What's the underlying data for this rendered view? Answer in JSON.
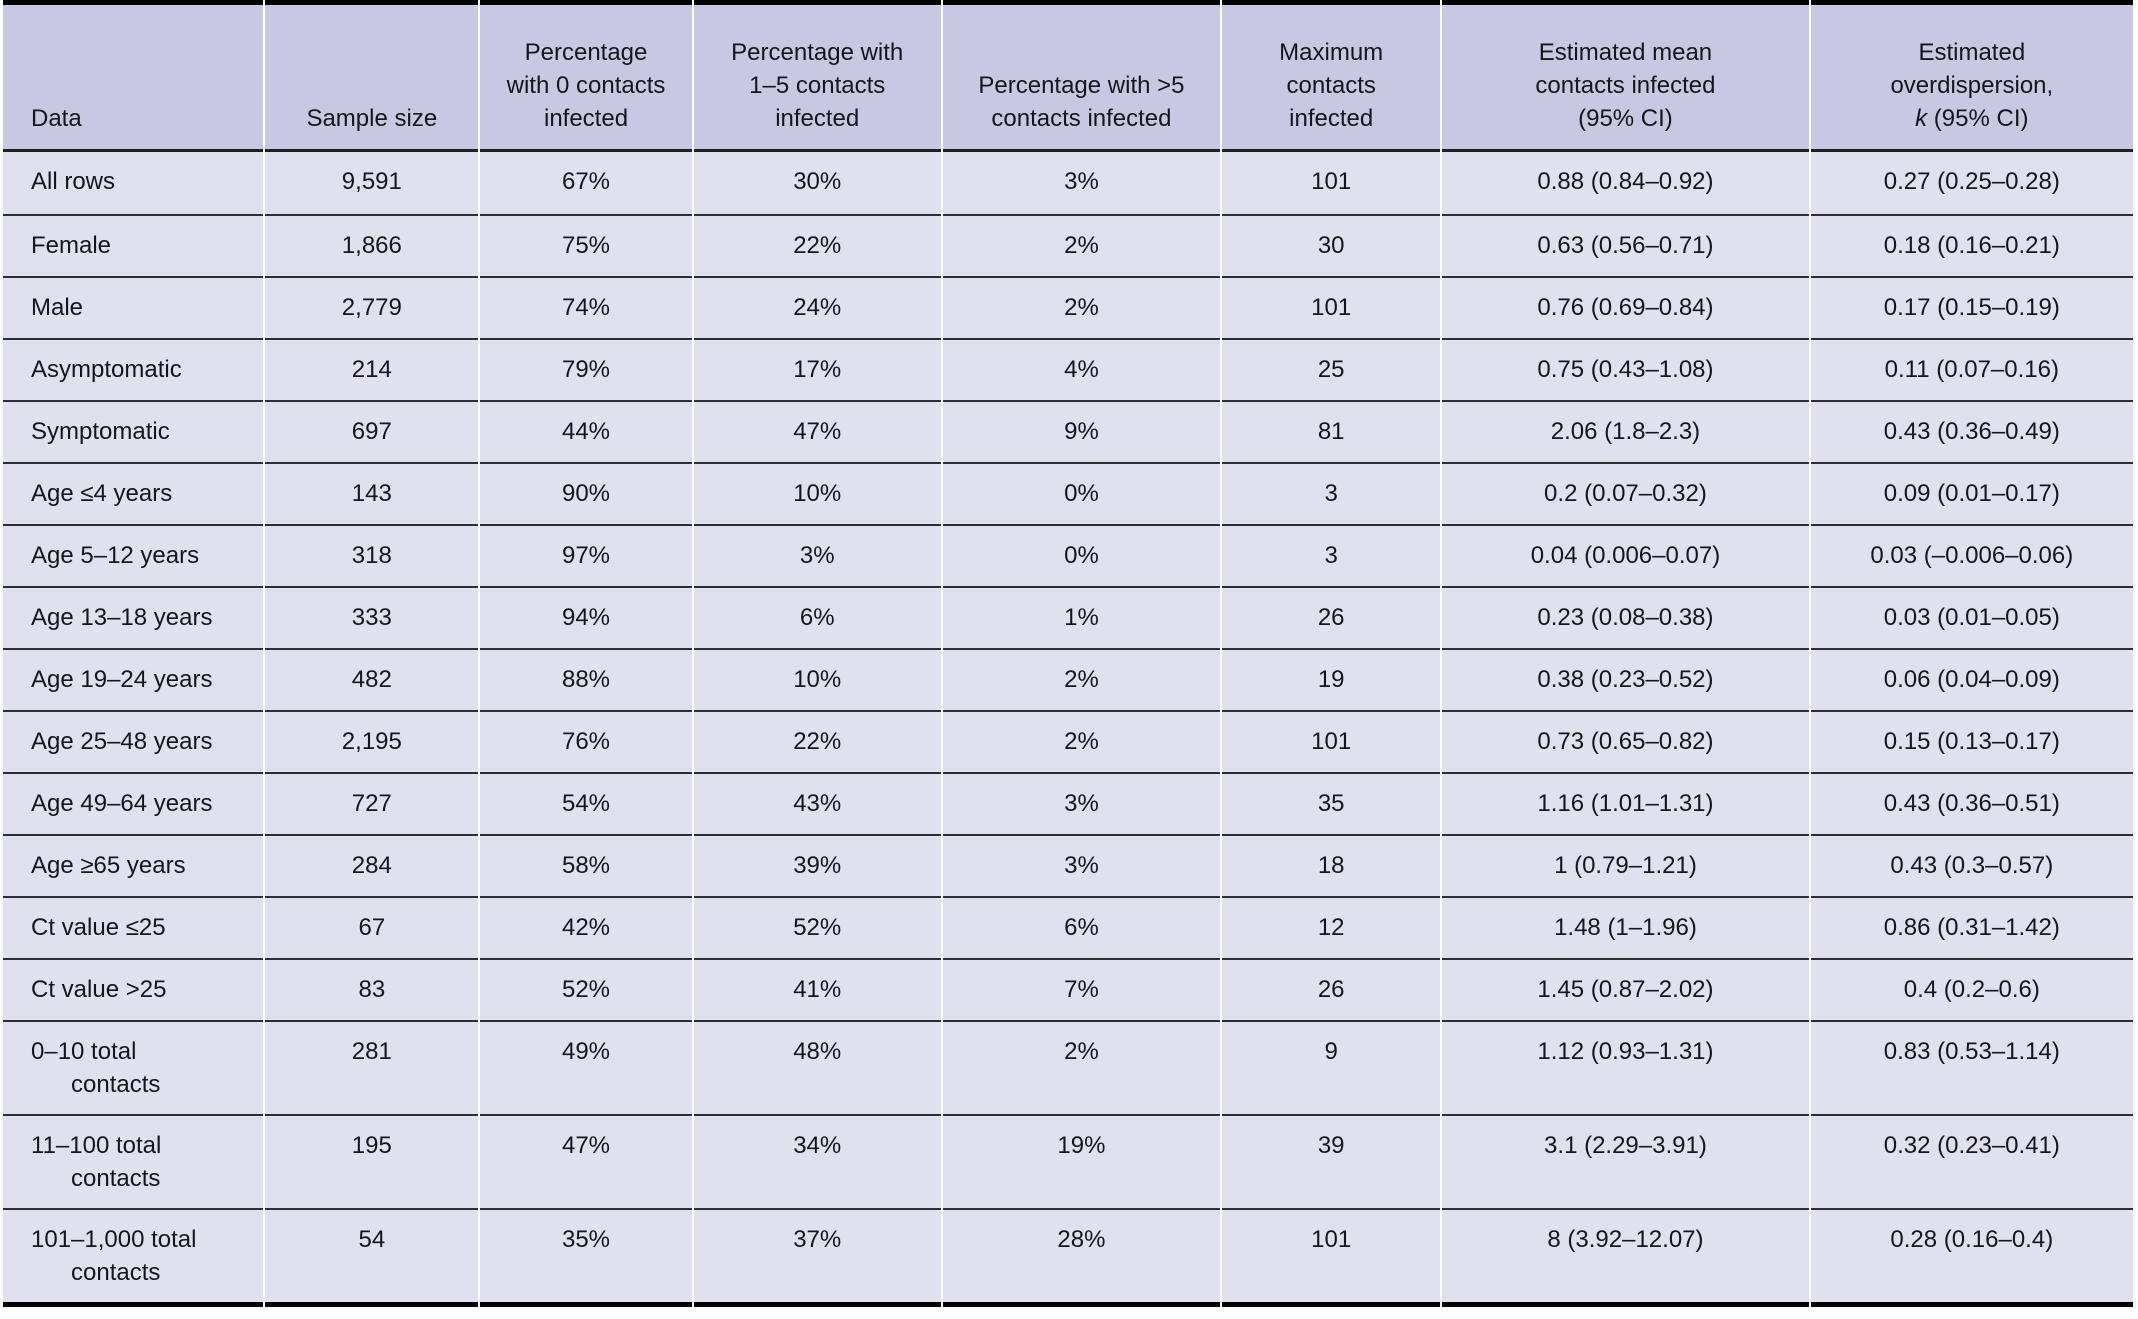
{
  "colors": {
    "header_bg": "#c8c8e2",
    "body_bg": "#e0e0ee",
    "column_separator": "#ffffff",
    "row_line": "#2e2e35",
    "header_rule": "#1e1e24",
    "frame_bar": "#000000",
    "text": "#15151b"
  },
  "table": {
    "columns": [
      {
        "id": "data",
        "align": "left",
        "lines": [
          "Data"
        ]
      },
      {
        "id": "sample",
        "align": "center",
        "lines": [
          "Sample size"
        ]
      },
      {
        "id": "p0",
        "align": "center",
        "lines": [
          "Percentage",
          "with 0 contacts",
          "infected"
        ]
      },
      {
        "id": "p15",
        "align": "center",
        "lines": [
          "Percentage with",
          "1–5 contacts",
          "infected"
        ]
      },
      {
        "id": "p5plus",
        "align": "center",
        "lines": [
          "Percentage with >5",
          "contacts infected"
        ]
      },
      {
        "id": "max",
        "align": "center",
        "lines": [
          "Maximum",
          "contacts",
          "infected"
        ]
      },
      {
        "id": "mean",
        "align": "center",
        "lines": [
          "Estimated mean",
          "contacts infected",
          "(95% CI)"
        ]
      },
      {
        "id": "k",
        "align": "center",
        "lines": [
          "Estimated",
          "overdispersion,"
        ],
        "final_line": {
          "italic": "k",
          "text": " (95% CI)"
        }
      }
    ],
    "rows": [
      {
        "data": "All rows",
        "sample": "9,591",
        "p0": "67%",
        "p15": "30%",
        "p5plus": "3%",
        "max": "101",
        "mean": "0.88 (0.84–0.92)",
        "k": "0.27 (0.25–0.28)"
      },
      {
        "data": "Female",
        "sample": "1,866",
        "p0": "75%",
        "p15": "22%",
        "p5plus": "2%",
        "max": "30",
        "mean": "0.63 (0.56–0.71)",
        "k": "0.18 (0.16–0.21)"
      },
      {
        "data": "Male",
        "sample": "2,779",
        "p0": "74%",
        "p15": "24%",
        "p5plus": "2%",
        "max": "101",
        "mean": "0.76 (0.69–0.84)",
        "k": "0.17 (0.15–0.19)"
      },
      {
        "data": "Asymptomatic",
        "sample": "214",
        "p0": "79%",
        "p15": "17%",
        "p5plus": "4%",
        "max": "25",
        "mean": "0.75 (0.43–1.08)",
        "k": "0.11 (0.07–0.16)"
      },
      {
        "data": "Symptomatic",
        "sample": "697",
        "p0": "44%",
        "p15": "47%",
        "p5plus": "9%",
        "max": "81",
        "mean": "2.06 (1.8–2.3)",
        "k": "0.43 (0.36–0.49)"
      },
      {
        "data": "Age ≤4 years",
        "sample": "143",
        "p0": "90%",
        "p15": "10%",
        "p5plus": "0%",
        "max": "3",
        "mean": "0.2 (0.07–0.32)",
        "k": "0.09 (0.01–0.17)"
      },
      {
        "data": "Age 5–12 years",
        "sample": "318",
        "p0": "97%",
        "p15": "3%",
        "p5plus": "0%",
        "max": "3",
        "mean": "0.04 (0.006–0.07)",
        "k": "0.03 (–0.006–0.06)"
      },
      {
        "data": "Age 13–18 years",
        "sample": "333",
        "p0": "94%",
        "p15": "6%",
        "p5plus": "1%",
        "max": "26",
        "mean": "0.23 (0.08–0.38)",
        "k": "0.03 (0.01–0.05)"
      },
      {
        "data": "Age 19–24 years",
        "sample": "482",
        "p0": "88%",
        "p15": "10%",
        "p5plus": "2%",
        "max": "19",
        "mean": "0.38 (0.23–0.52)",
        "k": "0.06 (0.04–0.09)"
      },
      {
        "data": "Age 25–48 years",
        "sample": "2,195",
        "p0": "76%",
        "p15": "22%",
        "p5plus": "2%",
        "max": "101",
        "mean": "0.73 (0.65–0.82)",
        "k": "0.15 (0.13–0.17)"
      },
      {
        "data": "Age 49–64 years",
        "sample": "727",
        "p0": "54%",
        "p15": "43%",
        "p5plus": "3%",
        "max": "35",
        "mean": "1.16 (1.01–1.31)",
        "k": "0.43 (0.36–0.51)"
      },
      {
        "data": "Age ≥65 years",
        "sample": "284",
        "p0": "58%",
        "p15": "39%",
        "p5plus": "3%",
        "max": "18",
        "mean": "1 (0.79–1.21)",
        "k": "0.43 (0.3–0.57)"
      },
      {
        "data": "Ct value ≤25",
        "sample": "67",
        "p0": "42%",
        "p15": "52%",
        "p5plus": "6%",
        "max": "12",
        "mean": "1.48 (1–1.96)",
        "k": "0.86 (0.31–1.42)"
      },
      {
        "data": "Ct value >25",
        "sample": "83",
        "p0": "52%",
        "p15": "41%",
        "p5plus": "7%",
        "max": "26",
        "mean": "1.45 (0.87–2.02)",
        "k": "0.4 (0.2–0.6)"
      },
      {
        "data": "0–10 total\ncontacts",
        "sample": "281",
        "p0": "49%",
        "p15": "48%",
        "p5plus": "2%",
        "max": "9",
        "mean": "1.12 (0.93–1.31)",
        "k": "0.83 (0.53–1.14)"
      },
      {
        "data": "11–100 total\ncontacts",
        "sample": "195",
        "p0": "47%",
        "p15": "34%",
        "p5plus": "19%",
        "max": "39",
        "mean": "3.1 (2.29–3.91)",
        "k": "0.32 (0.23–0.41)"
      },
      {
        "data": "101–1,000 total\ncontacts",
        "sample": "54",
        "p0": "35%",
        "p15": "37%",
        "p5plus": "28%",
        "max": "101",
        "mean": "8 (3.92–12.07)",
        "k": "0.28 (0.16–0.4)"
      }
    ]
  }
}
